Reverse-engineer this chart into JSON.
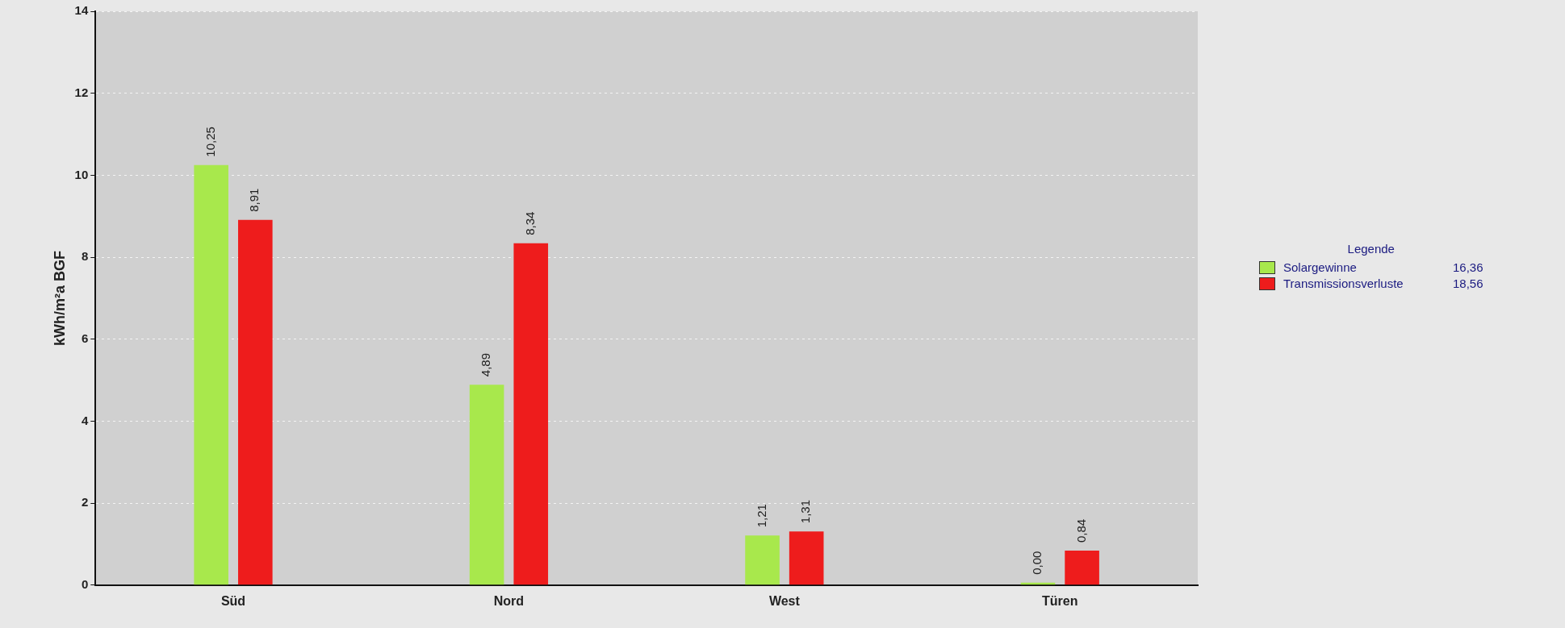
{
  "chart_data": {
    "type": "bar",
    "categories": [
      "Süd",
      "Nord",
      "West",
      "Türen"
    ],
    "ylabel": "kWh/m²a BGF",
    "legend_title": "Legende",
    "series": [
      {
        "name": "Solargewinne",
        "color": "#a8e84c",
        "values": [
          10.25,
          4.89,
          1.21,
          0.0
        ],
        "value_labels": [
          "10,25",
          "4,89",
          "1,21",
          "0,00"
        ]
      },
      {
        "name": "Transmissionsverluste",
        "color": "#ee1c1c",
        "values": [
          8.91,
          8.34,
          1.31,
          0.84
        ],
        "value_labels": [
          "8,91",
          "8,34",
          "1,31",
          "0,84"
        ]
      }
    ],
    "annotations": [
      "16,36",
      "18,56"
    ],
    "ylim": [
      0,
      14
    ],
    "yticks": [
      0,
      2,
      4,
      6,
      8,
      10,
      12,
      14
    ],
    "grid": "y",
    "legend": "right"
  }
}
